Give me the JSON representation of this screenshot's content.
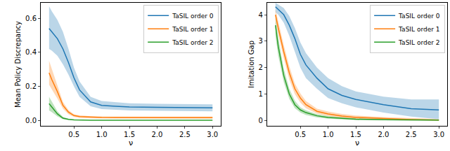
{
  "chart_data": [
    {
      "type": "line",
      "x_label": "ν",
      "y_label": "Mean Policy Discrepancy",
      "x": [
        0.05,
        0.1,
        0.2,
        0.3,
        0.4,
        0.5,
        0.6,
        0.8,
        1.0,
        1.25,
        1.5,
        2.0,
        2.5,
        3.0
      ],
      "xlim": [
        -0.1,
        3.15
      ],
      "xticks": [
        0.5,
        {
          "value": 1,
          "label": "1.0"
        },
        1.5,
        {
          "value": 2,
          "label": "2.0"
        },
        2.5,
        {
          "value": 3,
          "label": "3.0"
        }
      ],
      "ylim": [
        -0.03,
        0.69
      ],
      "yticks": [
        {
          "value": 0,
          "label": "0.0"
        },
        0.2,
        0.4,
        0.6
      ],
      "grid": false,
      "legend": "upper right",
      "series": [
        {
          "name": "TaSIL order 0",
          "color": "#1f77b4",
          "values": [
            0.54,
            0.52,
            0.48,
            0.42,
            0.34,
            0.25,
            0.18,
            0.11,
            0.09,
            0.085,
            0.08,
            0.078,
            0.076,
            0.075
          ],
          "lower": [
            0.42,
            0.41,
            0.38,
            0.33,
            0.27,
            0.2,
            0.14,
            0.085,
            0.068,
            0.064,
            0.06,
            0.058,
            0.056,
            0.055
          ],
          "upper": [
            0.67,
            0.64,
            0.59,
            0.52,
            0.42,
            0.31,
            0.23,
            0.14,
            0.115,
            0.108,
            0.102,
            0.099,
            0.097,
            0.096
          ]
        },
        {
          "name": "TaSIL order 1",
          "color": "#ff7f0e",
          "values": [
            0.28,
            0.24,
            0.17,
            0.09,
            0.05,
            0.03,
            0.024,
            0.02,
            0.019,
            0.018,
            0.018,
            0.018,
            0.018,
            0.018
          ],
          "lower": [
            0.21,
            0.18,
            0.13,
            0.07,
            0.038,
            0.022,
            0.017,
            0.014,
            0.013,
            0.012,
            0.012,
            0.012,
            0.012,
            0.012
          ],
          "upper": [
            0.35,
            0.3,
            0.21,
            0.11,
            0.062,
            0.038,
            0.031,
            0.026,
            0.025,
            0.024,
            0.024,
            0.024,
            0.024,
            0.024
          ]
        },
        {
          "name": "TaSIL order 2",
          "color": "#2ca02c",
          "values": [
            0.1,
            0.08,
            0.04,
            0.015,
            0.008,
            0.005,
            0.004,
            0.003,
            0.003,
            0.003,
            0.003,
            0.003,
            0.003,
            0.003
          ],
          "lower": [
            0.06,
            0.05,
            0.025,
            0.009,
            0.005,
            0.003,
            0.002,
            0.002,
            0.002,
            0.002,
            0.002,
            0.002,
            0.002,
            0.002
          ],
          "upper": [
            0.14,
            0.11,
            0.055,
            0.022,
            0.012,
            0.008,
            0.006,
            0.005,
            0.005,
            0.005,
            0.005,
            0.005,
            0.005,
            0.005
          ]
        }
      ]
    },
    {
      "type": "line",
      "x_label": "ν",
      "y_label": "Imitation Gap",
      "x": [
        0.05,
        0.1,
        0.2,
        0.3,
        0.4,
        0.5,
        0.6,
        0.8,
        1.0,
        1.25,
        1.5,
        2.0,
        2.5,
        3.0
      ],
      "xlim": [
        -0.1,
        3.15
      ],
      "xticks": [
        0.5,
        {
          "value": 1,
          "label": "1.0"
        },
        1.5,
        {
          "value": 2,
          "label": "2.0"
        },
        2.5,
        {
          "value": 3,
          "label": "3.0"
        }
      ],
      "ylim": [
        -0.2,
        4.45
      ],
      "yticks": [
        0,
        1,
        2,
        3,
        4
      ],
      "grid": false,
      "legend": "upper right",
      "series": [
        {
          "name": "TaSIL order 0",
          "color": "#1f77b4",
          "values": [
            4.3,
            4.2,
            4.0,
            3.6,
            3.1,
            2.5,
            2.1,
            1.6,
            1.2,
            0.95,
            0.8,
            0.6,
            0.45,
            0.4
          ],
          "lower": [
            4.1,
            4.0,
            3.7,
            3.2,
            2.6,
            2.0,
            1.6,
            1.2,
            0.85,
            0.65,
            0.5,
            0.3,
            0.15,
            0.05
          ],
          "upper": [
            4.45,
            4.38,
            4.25,
            3.95,
            3.5,
            2.95,
            2.55,
            2.0,
            1.6,
            1.3,
            1.1,
            0.9,
            0.8,
            0.8
          ]
        },
        {
          "name": "TaSIL order 1",
          "color": "#ff7f0e",
          "values": [
            4.0,
            3.5,
            2.6,
            1.8,
            1.2,
            0.85,
            0.6,
            0.35,
            0.25,
            0.17,
            0.12,
            0.07,
            0.04,
            0.02
          ],
          "lower": [
            3.8,
            3.25,
            2.35,
            1.55,
            1.0,
            0.68,
            0.47,
            0.26,
            0.17,
            0.1,
            0.06,
            0.02,
            0.0,
            0.0
          ],
          "upper": [
            4.2,
            3.75,
            2.85,
            2.05,
            1.4,
            1.02,
            0.74,
            0.45,
            0.34,
            0.25,
            0.19,
            0.13,
            0.09,
            0.06
          ]
        },
        {
          "name": "TaSIL order 2",
          "color": "#2ca02c",
          "values": [
            3.6,
            2.8,
            1.7,
            1.0,
            0.6,
            0.4,
            0.3,
            0.18,
            0.12,
            0.08,
            0.05,
            0.03,
            0.02,
            0.02
          ],
          "lower": [
            3.2,
            2.45,
            1.45,
            0.82,
            0.47,
            0.3,
            0.21,
            0.12,
            0.07,
            0.04,
            0.02,
            0.01,
            0.0,
            0.0
          ],
          "upper": [
            3.9,
            3.15,
            1.95,
            1.2,
            0.75,
            0.5,
            0.39,
            0.24,
            0.17,
            0.12,
            0.08,
            0.05,
            0.04,
            0.04
          ]
        }
      ]
    }
  ]
}
